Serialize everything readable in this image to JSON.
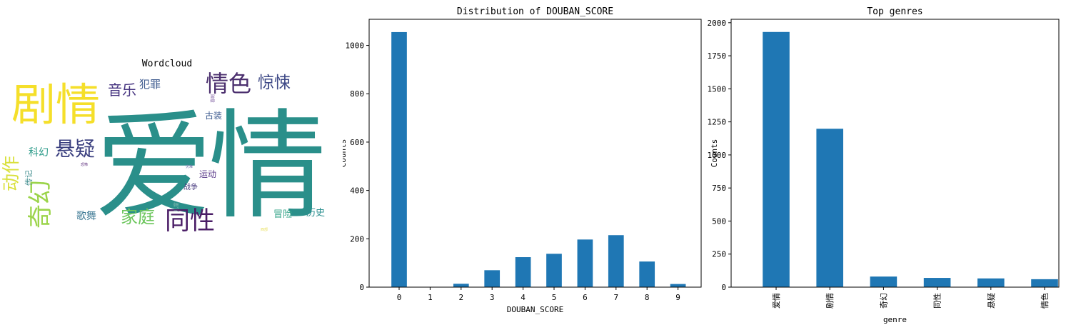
{
  "wordcloud": {
    "title": "Wordcloud",
    "words": [
      {
        "text": "爱情",
        "color": "#2a8f8a"
      },
      {
        "text": "剧情",
        "color": "#f5df2a"
      },
      {
        "text": "情色",
        "color": "#4b2f6e"
      },
      {
        "text": "惊悚",
        "color": "#3f4a87"
      },
      {
        "text": "音乐",
        "color": "#463480"
      },
      {
        "text": "犯罪",
        "color": "#3e5b8f"
      },
      {
        "text": "悬疑",
        "color": "#3a3f7f"
      },
      {
        "text": "科幻",
        "color": "#2a9a88"
      },
      {
        "text": "动作",
        "color": "#d9e03c"
      },
      {
        "text": "奇幻",
        "color": "#9bd44a"
      },
      {
        "text": "传记",
        "color": "#3d8b8c"
      },
      {
        "text": "家庭",
        "color": "#6cc65c"
      },
      {
        "text": "同性",
        "color": "#4a1d66"
      },
      {
        "text": "歌舞",
        "color": "#3e7a95"
      },
      {
        "text": "古装",
        "color": "#3c5a8f"
      },
      {
        "text": "运动",
        "color": "#5a3a8a"
      },
      {
        "text": "战争",
        "color": "#4a3c80"
      },
      {
        "text": "冒险",
        "color": "#37a58a"
      },
      {
        "text": "历史",
        "color": "#2a8f8f"
      },
      {
        "text": "恐怖",
        "color": "#5a2a7a"
      },
      {
        "text": "灾难",
        "color": "#6b6fa8"
      },
      {
        "text": "儿童",
        "color": "#7fb8b0"
      },
      {
        "text": "西部",
        "color": "#e8e060"
      },
      {
        "text": "喜剧",
        "color": "#7c5aa0"
      }
    ]
  },
  "chart_data": [
    {
      "type": "bar",
      "title": "Distribution of DOUBAN_SCORE",
      "xlabel": "DOUBAN_SCORE",
      "ylabel": "Counts",
      "categories": [
        "0",
        "1",
        "2",
        "3",
        "4",
        "5",
        "6",
        "7",
        "8",
        "9"
      ],
      "values": [
        1055,
        1,
        14,
        70,
        124,
        138,
        197,
        215,
        106,
        13
      ],
      "yticks": [
        0,
        200,
        400,
        600,
        800,
        1000
      ],
      "ylim": [
        0,
        1108
      ],
      "bar_color": "#1f77b4",
      "grid": false
    },
    {
      "type": "bar",
      "title": "Top genres",
      "xlabel": "genre",
      "ylabel": "Counts",
      "categories": [
        "爱情",
        "剧情",
        "奇幻",
        "同性",
        "悬疑",
        "情色"
      ],
      "values": [
        1930,
        1198,
        80,
        70,
        66,
        60
      ],
      "yticks": [
        0,
        250,
        500,
        750,
        1000,
        1250,
        1500,
        1750,
        2000
      ],
      "ylim": [
        0,
        2026
      ],
      "bar_color": "#1f77b4",
      "grid": false
    }
  ]
}
